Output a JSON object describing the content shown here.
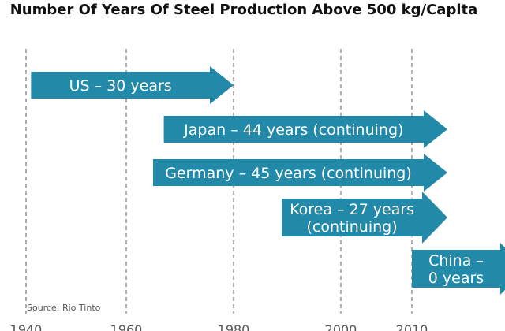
{
  "chart_data": {
    "type": "bar",
    "orientation": "horizontal-arrows",
    "title": "Number Of Years Of Steel Production Above 500 kg/Capita",
    "source": "Source: Rio Tinto",
    "x_ticks": [
      1940,
      1960,
      1980,
      2000,
      2010
    ],
    "xlim": [
      1939,
      2027
    ],
    "colors": {
      "arrow": "#2389a8",
      "label": "#ffffff",
      "grid": "#8a8a8a"
    },
    "series": [
      {
        "country": "US",
        "label_lines": [
          "US – 30 years"
        ],
        "start": 1941,
        "end": 1980,
        "years": 30,
        "continuing": false
      },
      {
        "country": "Japan",
        "label_lines": [
          "Japan – 44 years (continuing)"
        ],
        "start": 1967,
        "end": 2015,
        "years": 44,
        "continuing": true
      },
      {
        "country": "Germany",
        "label_lines": [
          "Germany – 45 years (continuing)"
        ],
        "start": 1965,
        "end": 2015,
        "years": 45,
        "continuing": true
      },
      {
        "country": "Korea",
        "label_lines": [
          "Korea – 27 years",
          "(continuing)"
        ],
        "start": 1989,
        "end": 2015,
        "years": 27,
        "continuing": true
      },
      {
        "country": "China",
        "label_lines": [
          "China –",
          "0 years"
        ],
        "start": 2010,
        "end": 2026,
        "years": 0,
        "continuing": false
      }
    ]
  }
}
